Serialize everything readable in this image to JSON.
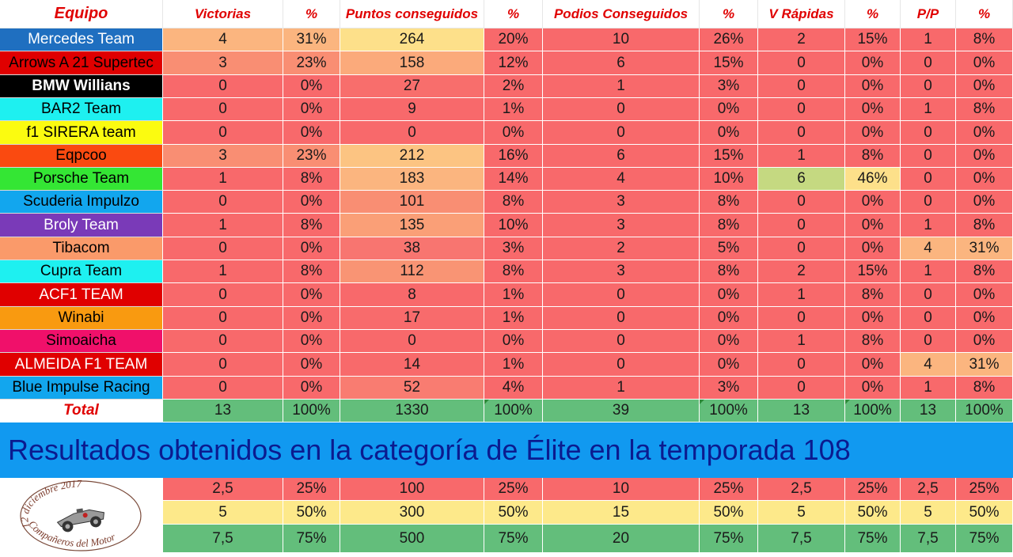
{
  "header": [
    "Equipo",
    "Victorias",
    "%",
    "Puntos conseguidos",
    "%",
    "Podios Conseguidos",
    "%",
    "V Rápidas",
    "%",
    "P/P",
    "%"
  ],
  "rows": [
    {
      "team": "Mercedes Team",
      "team_bg": "#1f6fc0",
      "team_fg": "#ffffff",
      "team_bold": false,
      "values": [
        "4",
        "31%",
        "264",
        "20%",
        "10",
        "26%",
        "2",
        "15%",
        "1",
        "8%"
      ],
      "colors": [
        "#fbb57f",
        "#fbb57f",
        "#fde08a",
        "#f8696b",
        "#f8696b",
        "#f8696b",
        "#f8696b",
        "#f8696b",
        "#f8696b",
        "#f8696b"
      ]
    },
    {
      "team": "Arrows A 21 Supertec",
      "team_bg": "#e00000",
      "team_fg": "#000000",
      "team_bold": false,
      "values": [
        "3",
        "23%",
        "158",
        "12%",
        "6",
        "15%",
        "0",
        "0%",
        "0",
        "0%"
      ],
      "colors": [
        "#f98e73",
        "#f98e73",
        "#fbaa7b",
        "#f8696b",
        "#f8696b",
        "#f8696b",
        "#f8696b",
        "#f8696b",
        "#f8696b",
        "#f8696b"
      ]
    },
    {
      "team": "BMW Willians",
      "team_bg": "#000000",
      "team_fg": "#ffffff",
      "team_bold": true,
      "values": [
        "0",
        "0%",
        "27",
        "2%",
        "1",
        "3%",
        "0",
        "0%",
        "0",
        "0%"
      ],
      "colors": [
        "#f8696b",
        "#f8696b",
        "#f86e6c",
        "#f8696b",
        "#f8696b",
        "#f8696b",
        "#f8696b",
        "#f8696b",
        "#f8696b",
        "#f8696b"
      ]
    },
    {
      "team": "BAR2 Team",
      "team_bg": "#1ef0f0",
      "team_fg": "#000000",
      "team_bold": false,
      "values": [
        "0",
        "0%",
        "9",
        "1%",
        "0",
        "0%",
        "0",
        "0%",
        "1",
        "8%"
      ],
      "colors": [
        "#f8696b",
        "#f8696b",
        "#f8696b",
        "#f8696b",
        "#f8696b",
        "#f8696b",
        "#f8696b",
        "#f8696b",
        "#f8696b",
        "#f8696b"
      ]
    },
    {
      "team": "f1  SIRERA team",
      "team_bg": "#fbfb10",
      "team_fg": "#000000",
      "team_bold": false,
      "values": [
        "0",
        "0%",
        "0",
        "0%",
        "0",
        "0%",
        "0",
        "0%",
        "0",
        "0%"
      ],
      "colors": [
        "#f8696b",
        "#f8696b",
        "#f8696b",
        "#f8696b",
        "#f8696b",
        "#f8696b",
        "#f8696b",
        "#f8696b",
        "#f8696b",
        "#f8696b"
      ]
    },
    {
      "team": "Eqpcoo",
      "team_bg": "#fa4a10",
      "team_fg": "#000000",
      "team_bold": false,
      "values": [
        "3",
        "23%",
        "212",
        "16%",
        "6",
        "15%",
        "1",
        "8%",
        "0",
        "0%"
      ],
      "colors": [
        "#f98e73",
        "#f98e73",
        "#fcc482",
        "#f8696b",
        "#f8696b",
        "#f8696b",
        "#f8696b",
        "#f8696b",
        "#f8696b",
        "#f8696b"
      ]
    },
    {
      "team": "Porsche Team",
      "team_bg": "#34e634",
      "team_fg": "#000000",
      "team_bold": false,
      "values": [
        "1",
        "8%",
        "183",
        "14%",
        "4",
        "10%",
        "6",
        "46%",
        "0",
        "0%"
      ],
      "colors": [
        "#f8696b",
        "#f8696b",
        "#fbb57f",
        "#f8696b",
        "#f8696b",
        "#f8696b",
        "#c5d981",
        "#fde08a",
        "#f8696b",
        "#f8696b"
      ]
    },
    {
      "team": "Scuderia Impulzo",
      "team_bg": "#12a6ee",
      "team_fg": "#000000",
      "team_bold": false,
      "values": [
        "0",
        "0%",
        "101",
        "8%",
        "3",
        "8%",
        "0",
        "0%",
        "0",
        "0%"
      ],
      "colors": [
        "#f8696b",
        "#f8696b",
        "#f98e73",
        "#f8696b",
        "#f8696b",
        "#f8696b",
        "#f8696b",
        "#f8696b",
        "#f8696b",
        "#f8696b"
      ]
    },
    {
      "team": "Broly Team",
      "team_bg": "#7a3ab8",
      "team_fg": "#ffffff",
      "team_bold": false,
      "values": [
        "1",
        "8%",
        "135",
        "10%",
        "3",
        "8%",
        "0",
        "0%",
        "1",
        "8%"
      ],
      "colors": [
        "#f8696b",
        "#f8696b",
        "#fa9f77",
        "#f8696b",
        "#f8696b",
        "#f8696b",
        "#f8696b",
        "#f8696b",
        "#f8696b",
        "#f8696b"
      ]
    },
    {
      "team": "Tibacom",
      "team_bg": "#fa9a6a",
      "team_fg": "#000000",
      "team_bold": false,
      "values": [
        "0",
        "0%",
        "38",
        "3%",
        "2",
        "5%",
        "0",
        "0%",
        "4",
        "31%"
      ],
      "colors": [
        "#f8696b",
        "#f8696b",
        "#f87570",
        "#f8696b",
        "#f8696b",
        "#f8696b",
        "#f8696b",
        "#f8696b",
        "#fbb57f",
        "#fbb57f"
      ]
    },
    {
      "team": "Cupra Team",
      "team_bg": "#1ef0f0",
      "team_fg": "#000000",
      "team_bold": false,
      "values": [
        "1",
        "8%",
        "112",
        "8%",
        "3",
        "8%",
        "2",
        "15%",
        "1",
        "8%"
      ],
      "colors": [
        "#f8696b",
        "#f8696b",
        "#f99474",
        "#f8696b",
        "#f8696b",
        "#f8696b",
        "#f8696b",
        "#f8696b",
        "#f8696b",
        "#f8696b"
      ]
    },
    {
      "team": "ACF1 TEAM",
      "team_bg": "#e00000",
      "team_fg": "#ffffff",
      "team_bold": false,
      "values": [
        "0",
        "0%",
        "8",
        "1%",
        "0",
        "0%",
        "1",
        "8%",
        "0",
        "0%"
      ],
      "colors": [
        "#f8696b",
        "#f8696b",
        "#f8696b",
        "#f8696b",
        "#f8696b",
        "#f8696b",
        "#f8696b",
        "#f8696b",
        "#f8696b",
        "#f8696b"
      ]
    },
    {
      "team": "Winabi",
      "team_bg": "#f99a10",
      "team_fg": "#000000",
      "team_bold": false,
      "values": [
        "0",
        "0%",
        "17",
        "1%",
        "0",
        "0%",
        "0",
        "0%",
        "0",
        "0%"
      ],
      "colors": [
        "#f8696b",
        "#f8696b",
        "#f86b6c",
        "#f8696b",
        "#f8696b",
        "#f8696b",
        "#f8696b",
        "#f8696b",
        "#f8696b",
        "#f8696b"
      ]
    },
    {
      "team": "Simoaicha",
      "team_bg": "#f0106a",
      "team_fg": "#000000",
      "team_bold": false,
      "values": [
        "0",
        "0%",
        "0",
        "0%",
        "0",
        "0%",
        "1",
        "8%",
        "0",
        "0%"
      ],
      "colors": [
        "#f8696b",
        "#f8696b",
        "#f8696b",
        "#f8696b",
        "#f8696b",
        "#f8696b",
        "#f8696b",
        "#f8696b",
        "#f8696b",
        "#f8696b"
      ]
    },
    {
      "team": "ALMEIDA F1 TEAM",
      "team_bg": "#e00000",
      "team_fg": "#ffffff",
      "team_bold": false,
      "values": [
        "0",
        "0%",
        "14",
        "1%",
        "0",
        "0%",
        "0",
        "0%",
        "4",
        "31%"
      ],
      "colors": [
        "#f8696b",
        "#f8696b",
        "#f86a6b",
        "#f8696b",
        "#f8696b",
        "#f8696b",
        "#f8696b",
        "#f8696b",
        "#fbb57f",
        "#fbb57f"
      ]
    },
    {
      "team": "Blue Impulse Racing",
      "team_bg": "#12a6ee",
      "team_fg": "#000000",
      "team_bold": false,
      "values": [
        "0",
        "0%",
        "52",
        "4%",
        "1",
        "3%",
        "0",
        "0%",
        "1",
        "8%"
      ],
      "colors": [
        "#f8696b",
        "#f8696b",
        "#f97c71",
        "#f8696b",
        "#f8696b",
        "#f8696b",
        "#f8696b",
        "#f8696b",
        "#f8696b",
        "#f8696b"
      ]
    }
  ],
  "total": {
    "label": "Total",
    "values": [
      "13",
      "100%",
      "1330",
      "100%",
      "39",
      "100%",
      "13",
      "100%",
      "13",
      "100%"
    ]
  },
  "banner": "Resultados obtenidos en la categoría de Élite en la temporada 108",
  "logo": {
    "text_top": "12 diciembre 2017",
    "text_bottom": "Compañeros del Motor",
    "icon": "race-car-icon"
  },
  "thresholds": [
    {
      "values": [
        "2,5",
        "25%",
        "100",
        "25%",
        "10",
        "25%",
        "2,5",
        "25%",
        "2,5",
        "25%"
      ],
      "bg": "#f8696b"
    },
    {
      "values": [
        "5",
        "50%",
        "300",
        "50%",
        "15",
        "50%",
        "5",
        "50%",
        "5",
        "50%"
      ],
      "bg": "#fde98a"
    },
    {
      "values": [
        "7,5",
        "75%",
        "500",
        "75%",
        "20",
        "75%",
        "7,5",
        "75%",
        "7,5",
        "75%"
      ],
      "bg": "#63be7b"
    }
  ]
}
